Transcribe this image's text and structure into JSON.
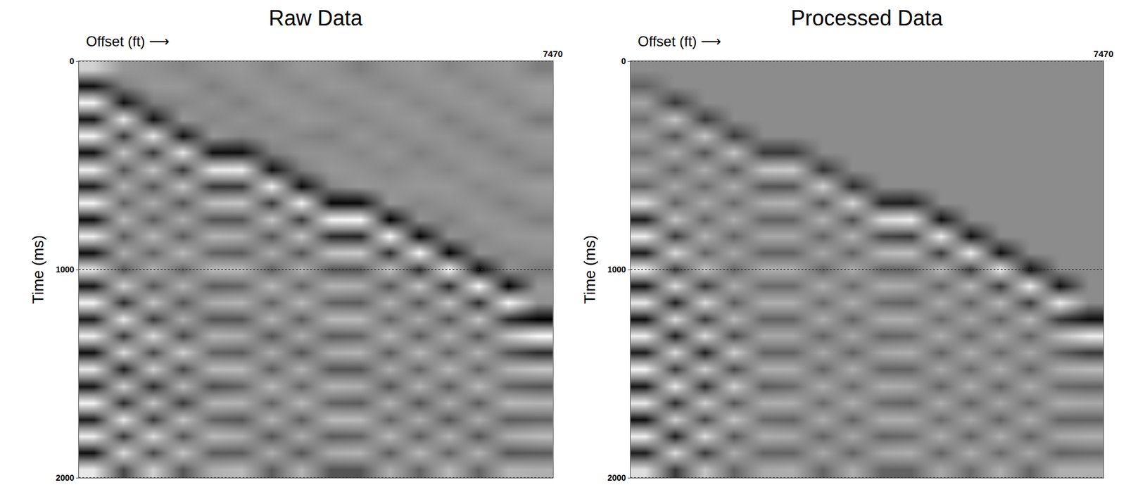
{
  "chart_data": [
    {
      "type": "heatmap",
      "title": "Raw Data",
      "xlabel": "Offset (ft) ⟶",
      "ylabel": "Time (ms)",
      "xlim": [
        0,
        7470
      ],
      "xticks": [
        7470
      ],
      "ylim": [
        2000,
        0
      ],
      "yticks": [
        0,
        1000,
        2000
      ],
      "grid": true,
      "zlim": [
        -1,
        1
      ],
      "x": [
        233,
        700,
        1167,
        1634,
        2101,
        2568,
        3035,
        3502,
        3969,
        4436,
        4903,
        5370,
        5837,
        6304,
        6771,
        7238
      ],
      "y": [
        40,
        120,
        200,
        280,
        360,
        440,
        520,
        600,
        680,
        760,
        840,
        920,
        1000,
        1080,
        1160,
        1240,
        1320,
        1400,
        1480,
        1560,
        1640,
        1720,
        1800,
        1880,
        1960
      ],
      "z": [
        [
          0.6,
          0.1,
          0.05,
          -0.05,
          0.05,
          0.1,
          -0.05,
          0.1,
          0.05,
          -0.1,
          0.05,
          0.1,
          -0.05,
          0.05,
          0.1,
          -0.1
        ],
        [
          -0.9,
          -0.1,
          0.1,
          0.1,
          -0.1,
          0.05,
          0.05,
          -0.05,
          0.1,
          0.05,
          -0.05,
          0.05,
          0.1,
          -0.05,
          0.05,
          0.15
        ],
        [
          0.9,
          -0.9,
          -0.1,
          -0.05,
          0.05,
          -0.1,
          0.1,
          0.05,
          -0.05,
          0.05,
          0.1,
          -0.05,
          0.05,
          0.1,
          -0.05,
          0.1
        ],
        [
          -0.85,
          0.8,
          -0.9,
          0.1,
          -0.05,
          0.05,
          -0.05,
          0.1,
          0.05,
          -0.05,
          0.05,
          0.1,
          -0.1,
          0.05,
          0.1,
          -0.15
        ],
        [
          0.9,
          -0.6,
          0.8,
          -0.9,
          0.1,
          -0.05,
          0.05,
          -0.05,
          -0.1,
          0.1,
          -0.05,
          0.05,
          0.05,
          -0.1,
          0.05,
          0.1
        ],
        [
          -0.9,
          0.5,
          -0.6,
          0.8,
          -0.9,
          -0.9,
          -0.1,
          0.05,
          0.05,
          -0.05,
          0.1,
          -0.1,
          0.05,
          0.05,
          -0.1,
          0.05
        ],
        [
          0.85,
          -0.4,
          0.5,
          -0.6,
          0.8,
          0.85,
          -0.9,
          -0.1,
          0.1,
          0.05,
          -0.05,
          0.05,
          -0.05,
          0.1,
          0.05,
          -0.1
        ],
        [
          -0.8,
          0.35,
          -0.4,
          0.5,
          -0.6,
          -0.6,
          0.85,
          -0.95,
          -0.05,
          0.1,
          0.05,
          0.1,
          0.1,
          -0.05,
          0.05,
          0.15
        ],
        [
          0.9,
          -0.3,
          0.3,
          -0.4,
          0.45,
          0.5,
          -0.6,
          0.9,
          -0.95,
          -0.95,
          0.1,
          -0.05,
          0.05,
          0.05,
          -0.1,
          0.05
        ],
        [
          -0.9,
          0.4,
          -0.35,
          0.3,
          -0.4,
          -0.4,
          0.5,
          -0.6,
          0.9,
          0.95,
          -1,
          0.05,
          -0.1,
          0.1,
          0.05,
          -0.1
        ],
        [
          0.85,
          -0.35,
          0.4,
          -0.35,
          0.35,
          0.3,
          -0.4,
          0.5,
          -0.7,
          -0.75,
          0.95,
          -1,
          0.05,
          -0.05,
          0.1,
          0.1
        ],
        [
          -0.9,
          0.3,
          -0.3,
          0.4,
          -0.3,
          -0.35,
          0.3,
          -0.4,
          0.5,
          0.55,
          -0.7,
          0.95,
          -1,
          0.05,
          -0.05,
          0.05
        ],
        [
          0.8,
          -0.4,
          0.35,
          -0.3,
          0.4,
          0.4,
          -0.35,
          0.35,
          -0.4,
          -0.4,
          0.5,
          -0.7,
          0.95,
          -1,
          0.05,
          -0.15
        ],
        [
          -0.85,
          0.6,
          -0.4,
          0.35,
          -0.35,
          -0.3,
          0.4,
          -0.3,
          0.35,
          0.3,
          -0.4,
          0.5,
          -0.7,
          0.95,
          -1,
          0.1
        ],
        [
          0.9,
          -0.7,
          0.5,
          -0.4,
          0.3,
          0.35,
          -0.3,
          0.4,
          -0.3,
          -0.35,
          0.35,
          -0.4,
          0.5,
          -0.7,
          0.95,
          0.05
        ],
        [
          -0.8,
          0.8,
          -0.6,
          0.3,
          -0.4,
          -0.4,
          0.35,
          -0.35,
          0.4,
          0.4,
          -0.3,
          0.3,
          -0.4,
          0.5,
          -0.7,
          -1
        ],
        [
          0.85,
          -0.6,
          0.7,
          -0.5,
          0.35,
          0.3,
          -0.4,
          0.3,
          -0.35,
          -0.3,
          0.4,
          -0.35,
          0.35,
          -0.4,
          0.5,
          0.95
        ],
        [
          -0.9,
          0.7,
          -0.5,
          0.6,
          -0.3,
          -0.35,
          0.3,
          -0.4,
          0.3,
          0.35,
          -0.35,
          0.4,
          -0.3,
          0.35,
          -0.4,
          -0.7
        ],
        [
          0.8,
          -0.8,
          0.6,
          -0.5,
          0.4,
          0.4,
          -0.35,
          0.35,
          -0.4,
          -0.4,
          0.3,
          -0.3,
          0.4,
          -0.3,
          0.35,
          0.5
        ],
        [
          -0.85,
          0.6,
          -0.7,
          0.4,
          -0.45,
          -0.3,
          0.4,
          -0.3,
          0.35,
          0.3,
          -0.4,
          0.35,
          -0.35,
          0.4,
          -0.3,
          -0.4
        ],
        [
          0.9,
          -0.7,
          0.5,
          -0.6,
          0.35,
          0.35,
          -0.3,
          0.4,
          -0.3,
          -0.35,
          0.35,
          -0.4,
          0.3,
          -0.35,
          0.4,
          0.35
        ],
        [
          -0.8,
          0.8,
          -0.6,
          0.5,
          -0.3,
          -0.4,
          0.35,
          -0.35,
          0.4,
          0.4,
          -0.3,
          0.3,
          -0.4,
          0.3,
          -0.35,
          -0.3
        ],
        [
          0.85,
          -0.6,
          0.7,
          -0.4,
          0.4,
          0.3,
          -0.4,
          0.3,
          -0.35,
          -0.3,
          0.4,
          -0.35,
          0.35,
          -0.4,
          0.3,
          0.4
        ],
        [
          -0.9,
          0.7,
          -0.5,
          0.5,
          -0.35,
          -0.35,
          0.3,
          -0.4,
          0.3,
          0.35,
          -0.35,
          0.4,
          -0.3,
          0.35,
          -0.4,
          -0.35
        ],
        [
          0.8,
          -0.5,
          0.6,
          -0.4,
          0.3,
          0.4,
          -0.35,
          0.35,
          -0.4,
          -0.4,
          0.3,
          -0.3,
          0.4,
          -0.3,
          0.35,
          0.3
        ]
      ]
    },
    {
      "type": "heatmap",
      "title": "Processed Data",
      "xlabel": "Offset (ft) ⟶",
      "ylabel": "Time (ms)",
      "xlim": [
        0,
        7470
      ],
      "xticks": [
        7470
      ],
      "ylim": [
        2000,
        0
      ],
      "yticks": [
        0,
        1000,
        2000
      ],
      "grid": true,
      "zlim": [
        -1,
        1
      ],
      "x": [
        233,
        700,
        1167,
        1634,
        2101,
        2568,
        3035,
        3502,
        3969,
        4436,
        4903,
        5370,
        5837,
        6304,
        6771,
        7238
      ],
      "y": [
        40,
        120,
        200,
        280,
        360,
        440,
        520,
        600,
        680,
        760,
        840,
        920,
        1000,
        1080,
        1160,
        1240,
        1320,
        1400,
        1480,
        1560,
        1640,
        1720,
        1800,
        1880,
        1960
      ],
      "z": [
        [
          0,
          0,
          0,
          0,
          0,
          0,
          0,
          0,
          0,
          0,
          0,
          0,
          0,
          0,
          0,
          0
        ],
        [
          -0.3,
          0,
          0,
          0,
          0,
          0,
          0,
          0,
          0,
          0,
          0,
          0,
          0,
          0,
          0,
          0
        ],
        [
          0.2,
          -0.6,
          0,
          0,
          0,
          0,
          0,
          0,
          0,
          0,
          0,
          0,
          0,
          0,
          0,
          0
        ],
        [
          -0.2,
          0.5,
          -0.6,
          0,
          0,
          0,
          0,
          0,
          0,
          0,
          0,
          0,
          0,
          0,
          0,
          0
        ],
        [
          0.2,
          -0.4,
          0.5,
          -0.6,
          0,
          0,
          0,
          0,
          0,
          0,
          0,
          0,
          0,
          0,
          0,
          0
        ],
        [
          -0.2,
          0.3,
          -0.4,
          0.5,
          -0.6,
          -0.6,
          0,
          0,
          0,
          0,
          0,
          0,
          0,
          0,
          0,
          0
        ],
        [
          0.25,
          -0.3,
          0.3,
          -0.4,
          0.5,
          0.55,
          -0.65,
          0,
          0,
          0,
          0,
          0,
          0,
          0,
          0,
          0
        ],
        [
          -0.3,
          0.25,
          -0.25,
          0.3,
          -0.4,
          -0.4,
          0.6,
          -0.7,
          0,
          0,
          0,
          0,
          0,
          0,
          0,
          0
        ],
        [
          0.7,
          -0.3,
          0.3,
          -0.25,
          0.3,
          0.35,
          -0.4,
          0.65,
          -0.75,
          -0.8,
          0,
          0,
          0,
          0,
          0,
          0
        ],
        [
          -0.8,
          0.5,
          -0.3,
          0.3,
          -0.3,
          -0.3,
          0.35,
          -0.45,
          0.7,
          0.85,
          -0.9,
          0,
          0,
          0,
          0,
          0
        ],
        [
          0.85,
          -0.6,
          0.35,
          -0.3,
          0.25,
          0.25,
          -0.3,
          0.35,
          -0.5,
          -0.6,
          0.85,
          -0.9,
          0,
          0,
          0,
          0
        ],
        [
          -0.8,
          0.7,
          -0.3,
          0.25,
          -0.3,
          -0.3,
          0.25,
          -0.3,
          0.4,
          0.45,
          -0.6,
          0.85,
          -0.9,
          0,
          0,
          0
        ],
        [
          0.9,
          -0.6,
          0.5,
          -0.3,
          0.3,
          0.3,
          -0.3,
          0.3,
          -0.3,
          -0.3,
          0.4,
          -0.6,
          0.85,
          -0.9,
          0,
          0
        ],
        [
          -0.85,
          0.7,
          -0.6,
          0.3,
          -0.25,
          -0.25,
          0.3,
          -0.25,
          0.3,
          0.25,
          -0.3,
          0.4,
          -0.6,
          0.85,
          -0.9,
          0
        ],
        [
          0.8,
          -0.8,
          0.7,
          -0.35,
          0.3,
          0.3,
          -0.25,
          0.3,
          -0.25,
          -0.3,
          0.3,
          -0.3,
          0.4,
          -0.6,
          0.85,
          0
        ],
        [
          -0.9,
          0.7,
          -0.6,
          0.4,
          -0.3,
          -0.3,
          0.3,
          -0.3,
          0.3,
          0.3,
          -0.25,
          0.25,
          -0.3,
          0.4,
          -0.6,
          -0.9
        ],
        [
          0.85,
          -0.8,
          0.7,
          -0.5,
          0.25,
          0.25,
          -0.3,
          0.25,
          -0.3,
          -0.25,
          0.3,
          -0.3,
          0.3,
          -0.3,
          0.4,
          0.85
        ],
        [
          -0.8,
          0.7,
          -0.8,
          0.6,
          -0.3,
          -0.3,
          0.25,
          -0.3,
          0.25,
          0.3,
          -0.3,
          0.3,
          -0.25,
          0.25,
          -0.3,
          -0.6
        ],
        [
          0.9,
          -0.6,
          0.6,
          -0.5,
          0.3,
          0.3,
          -0.3,
          0.3,
          -0.3,
          -0.3,
          0.25,
          -0.25,
          0.3,
          -0.3,
          0.3,
          0.4
        ],
        [
          -0.85,
          0.8,
          -0.7,
          0.6,
          -0.35,
          -0.25,
          0.3,
          -0.25,
          0.3,
          0.25,
          -0.3,
          0.3,
          -0.3,
          0.3,
          -0.25,
          -0.3
        ],
        [
          0.8,
          -0.7,
          0.6,
          -0.4,
          0.3,
          0.3,
          -0.25,
          0.3,
          -0.25,
          -0.3,
          0.3,
          -0.3,
          0.25,
          -0.25,
          0.3,
          0.25
        ],
        [
          -0.9,
          0.6,
          -0.5,
          0.5,
          -0.25,
          -0.3,
          0.3,
          -0.3,
          0.3,
          0.3,
          -0.25,
          0.25,
          -0.3,
          0.3,
          -0.3,
          -0.3
        ],
        [
          0.85,
          -0.8,
          0.7,
          -0.4,
          0.3,
          0.25,
          -0.3,
          0.25,
          -0.3,
          -0.25,
          0.3,
          -0.3,
          0.3,
          -0.3,
          0.25,
          0.3
        ],
        [
          -0.8,
          0.7,
          -0.6,
          0.3,
          -0.3,
          -0.3,
          0.25,
          -0.3,
          0.25,
          0.3,
          -0.3,
          0.3,
          -0.25,
          0.25,
          -0.3,
          -0.25
        ],
        [
          0.7,
          -0.6,
          0.5,
          -0.3,
          0.25,
          0.3,
          -0.3,
          0.3,
          -0.3,
          -0.3,
          0.25,
          -0.25,
          0.3,
          -0.3,
          0.3,
          0.3
        ]
      ]
    }
  ]
}
